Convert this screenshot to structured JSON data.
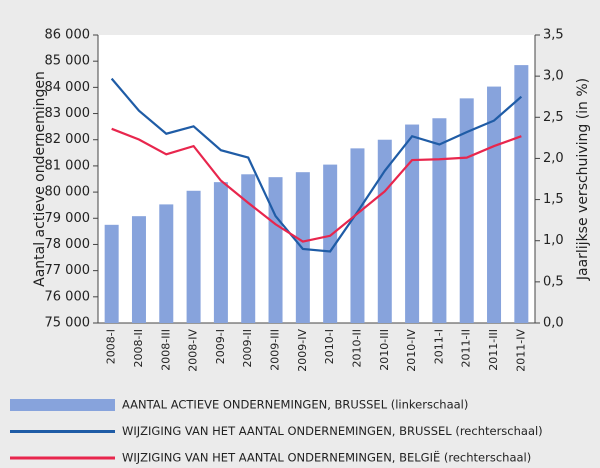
{
  "chart_data": {
    "type": "bar-line",
    "ylabel": "Aantal actieve ondernemingen",
    "y2label": "Jaarlijkse verschuiving (in %)",
    "categories": [
      "2008-I",
      "2008-II",
      "2008-III",
      "2008-IV",
      "2009-I",
      "2009-II",
      "2009-III",
      "2009-IV",
      "2010-I",
      "2010-II",
      "2010-III",
      "2010-IV",
      "2011-I",
      "2011-II",
      "2011-III",
      "2011-IV"
    ],
    "series": [
      {
        "name": "AANTAL ACTIEVE ONDERNEMINGEN, BRUSSEL (linkerschaal)",
        "type": "bar",
        "color": "#87a3dc",
        "axis": "y",
        "values": [
          78750,
          79080,
          79530,
          80050,
          80380,
          80680,
          80570,
          80760,
          81050,
          81670,
          82000,
          82580,
          82820,
          83580,
          84030,
          84850
        ]
      },
      {
        "name": "WIJZIGING VAN HET AANTAL ONDERNEMINGEN, BRUSSEL (rechterschaal)",
        "type": "line",
        "color": "#1f5ca6",
        "axis": "y2",
        "values": [
          2.97,
          2.58,
          2.3,
          2.39,
          2.1,
          2.01,
          1.3,
          0.9,
          0.87,
          1.35,
          1.85,
          2.27,
          2.17,
          2.32,
          2.46,
          2.75
        ]
      },
      {
        "name": "WIJZIGING VAN HET AANTAL ONDERNEMINGEN, BELGIË (rechterschaal)",
        "type": "line",
        "color": "#e8264d",
        "axis": "y2",
        "values": [
          2.36,
          2.23,
          2.05,
          2.15,
          1.73,
          1.46,
          1.2,
          0.99,
          1.06,
          1.33,
          1.6,
          1.98,
          1.99,
          2.01,
          2.15,
          2.27
        ]
      }
    ],
    "ylim": [
      75000,
      86000
    ],
    "yticks": [
      {
        "value": 75000,
        "label": "75 000"
      },
      {
        "value": 76000,
        "label": "76 000"
      },
      {
        "value": 77000,
        "label": "77 000"
      },
      {
        "value": 78000,
        "label": "78 000"
      },
      {
        "value": 79000,
        "label": "79 000"
      },
      {
        "value": 80000,
        "label": "80 000"
      },
      {
        "value": 81000,
        "label": "81 000"
      },
      {
        "value": 82000,
        "label": "82 000"
      },
      {
        "value": 83000,
        "label": "83 000"
      },
      {
        "value": 84000,
        "label": "84 000"
      },
      {
        "value": 85000,
        "label": "85 000"
      },
      {
        "value": 86000,
        "label": "86 000"
      }
    ],
    "y2lim": [
      0,
      3.5
    ],
    "y2ticks": [
      {
        "value": 0,
        "label": "0,0"
      },
      {
        "value": 0.5,
        "label": "0,5"
      },
      {
        "value": 1,
        "label": "1,0"
      },
      {
        "value": 1.5,
        "label": "1,5"
      },
      {
        "value": 2,
        "label": "2,0"
      },
      {
        "value": 2.5,
        "label": "2,5"
      },
      {
        "value": 3,
        "label": "3,0"
      },
      {
        "value": 3.5,
        "label": "3,5"
      }
    ],
    "grid": false
  }
}
